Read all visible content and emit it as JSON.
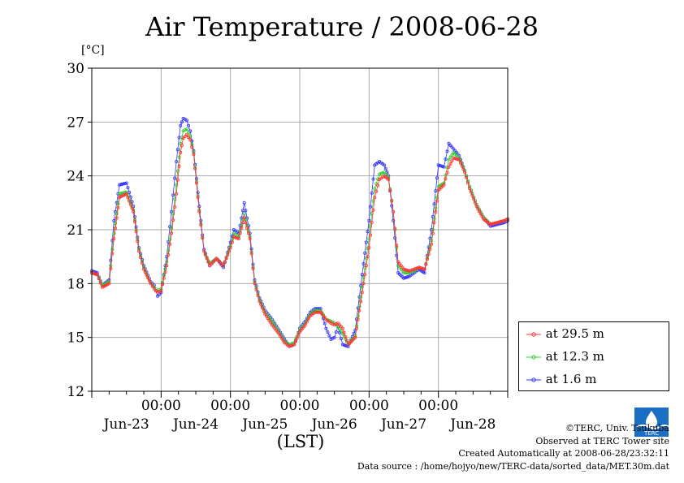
{
  "header": {
    "title": "Air Temperature / 2008-06-28",
    "unit": "[°C]"
  },
  "legend": [
    {
      "label": "at 29.5 m",
      "color": "#ff3333"
    },
    {
      "label": "at 12.3 m",
      "color": "#33cc33"
    },
    {
      "label": "at 1.6 m",
      "color": "#3333ff"
    }
  ],
  "credits": {
    "copyright": "©TERC, Univ. Tsukuba",
    "observed": "Observed at TERC Tower site",
    "created": "Created Automatically at 2008-06-28/23:32:11",
    "source": "Data source : /home/hojyo/new/TERC-data/sorted_data/MET.30m.dat"
  },
  "logo": {
    "icon": "terc-logo-icon",
    "text": "TERC"
  },
  "chart_data": {
    "type": "line",
    "title": "Air Temperature / 2008-06-28",
    "ylabel": "[°C]",
    "xlabel": "(LST)",
    "ylim": [
      12,
      30
    ],
    "yticks": [
      12,
      15,
      18,
      21,
      24,
      27,
      30
    ],
    "xlim": [
      0,
      6
    ],
    "midnight_ticks": [
      1,
      2,
      3,
      4,
      5
    ],
    "midnight_label": "00:00",
    "day_labels": [
      "Jun-23",
      "Jun-24",
      "Jun-25",
      "Jun-26",
      "Jun-27",
      "Jun-28"
    ],
    "grid": true,
    "legend_position": "right-bottom",
    "series": [
      {
        "name": "at 29.5 m",
        "color": "#ff3333",
        "x": [
          0,
          0.08,
          0.15,
          0.25,
          0.32,
          0.4,
          0.5,
          0.6,
          0.68,
          0.75,
          0.85,
          0.9,
          0.95,
          1.0,
          1.08,
          1.15,
          1.22,
          1.28,
          1.32,
          1.37,
          1.42,
          1.47,
          1.55,
          1.62,
          1.7,
          1.8,
          1.9,
          2.0,
          2.05,
          2.12,
          2.2,
          2.28,
          2.35,
          2.42,
          2.5,
          2.6,
          2.7,
          2.78,
          2.85,
          2.92,
          3.0,
          3.08,
          3.15,
          3.22,
          3.3,
          3.38,
          3.45,
          3.5,
          3.55,
          3.62,
          3.7,
          3.8,
          3.9,
          4.0,
          4.08,
          4.15,
          4.22,
          4.28,
          4.35,
          4.42,
          4.5,
          4.58,
          4.65,
          4.72,
          4.8,
          4.9,
          5.0,
          5.08,
          5.15,
          5.22,
          5.3,
          5.38,
          5.45,
          5.55,
          5.65,
          5.75,
          5.85,
          5.95,
          6.0
        ],
        "y": [
          18.6,
          18.5,
          17.8,
          18.0,
          20.5,
          22.8,
          23.0,
          22.0,
          19.8,
          18.8,
          18.0,
          17.7,
          17.5,
          17.6,
          19.0,
          20.8,
          23.0,
          25.3,
          26.1,
          26.3,
          26.0,
          25.2,
          22.0,
          19.8,
          19.0,
          19.4,
          19.0,
          20.0,
          20.6,
          20.5,
          21.7,
          20.5,
          18.0,
          17.0,
          16.3,
          15.7,
          15.2,
          14.7,
          14.5,
          14.6,
          15.3,
          15.7,
          16.2,
          16.4,
          16.4,
          16.0,
          15.8,
          15.7,
          15.8,
          15.5,
          14.6,
          15.0,
          17.5,
          20.0,
          22.8,
          23.8,
          24.0,
          23.8,
          22.0,
          19.2,
          18.8,
          18.7,
          18.8,
          18.9,
          18.8,
          20.2,
          23.2,
          23.5,
          24.5,
          25.0,
          24.9,
          24.2,
          23.3,
          22.3,
          21.6,
          21.3,
          21.4,
          21.5,
          21.6
        ]
      },
      {
        "name": "at 12.3 m",
        "color": "#33cc33",
        "x": [
          0,
          0.08,
          0.15,
          0.25,
          0.32,
          0.4,
          0.5,
          0.6,
          0.68,
          0.75,
          0.85,
          0.9,
          0.95,
          1.0,
          1.08,
          1.15,
          1.22,
          1.28,
          1.32,
          1.37,
          1.42,
          1.47,
          1.55,
          1.62,
          1.7,
          1.8,
          1.9,
          2.0,
          2.05,
          2.12,
          2.2,
          2.28,
          2.35,
          2.42,
          2.5,
          2.6,
          2.7,
          2.78,
          2.85,
          2.92,
          3.0,
          3.08,
          3.15,
          3.22,
          3.3,
          3.38,
          3.45,
          3.5,
          3.55,
          3.62,
          3.7,
          3.8,
          3.9,
          4.0,
          4.08,
          4.15,
          4.22,
          4.28,
          4.35,
          4.42,
          4.5,
          4.58,
          4.65,
          4.72,
          4.8,
          4.9,
          5.0,
          5.08,
          5.15,
          5.22,
          5.3,
          5.38,
          5.45,
          5.55,
          5.65,
          5.75,
          5.85,
          5.95,
          6.0
        ],
        "y": [
          18.6,
          18.5,
          17.9,
          18.1,
          20.8,
          23.0,
          23.1,
          22.1,
          19.9,
          18.9,
          18.0,
          17.8,
          17.6,
          17.7,
          19.2,
          21.1,
          23.5,
          25.8,
          26.5,
          26.6,
          26.2,
          25.3,
          22.1,
          19.8,
          19.1,
          19.4,
          19.0,
          20.1,
          20.8,
          20.6,
          21.9,
          20.6,
          18.1,
          17.1,
          16.4,
          15.9,
          15.3,
          14.8,
          14.6,
          14.7,
          15.4,
          15.8,
          16.3,
          16.5,
          16.5,
          16.0,
          15.9,
          15.8,
          15.6,
          15.2,
          14.6,
          15.1,
          17.8,
          20.5,
          23.3,
          24.1,
          24.2,
          23.9,
          22.0,
          19.0,
          18.6,
          18.6,
          18.7,
          18.9,
          18.8,
          20.4,
          23.4,
          23.6,
          24.9,
          25.3,
          25.0,
          24.3,
          23.4,
          22.4,
          21.7,
          21.3,
          21.4,
          21.5,
          21.6
        ]
      },
      {
        "name": "at 1.6 m",
        "color": "#3333ff",
        "x": [
          0,
          0.08,
          0.15,
          0.25,
          0.32,
          0.4,
          0.5,
          0.6,
          0.68,
          0.75,
          0.85,
          0.9,
          0.95,
          1.0,
          1.08,
          1.15,
          1.22,
          1.28,
          1.32,
          1.37,
          1.42,
          1.47,
          1.55,
          1.62,
          1.7,
          1.8,
          1.9,
          2.0,
          2.05,
          2.12,
          2.2,
          2.28,
          2.35,
          2.42,
          2.5,
          2.6,
          2.7,
          2.78,
          2.85,
          2.92,
          3.0,
          3.08,
          3.15,
          3.22,
          3.3,
          3.38,
          3.45,
          3.5,
          3.55,
          3.62,
          3.7,
          3.8,
          3.9,
          4.0,
          4.08,
          4.15,
          4.22,
          4.28,
          4.35,
          4.42,
          4.5,
          4.58,
          4.65,
          4.72,
          4.8,
          4.9,
          5.0,
          5.08,
          5.15,
          5.22,
          5.3,
          5.38,
          5.45,
          5.55,
          5.65,
          5.75,
          5.85,
          5.95,
          6.0
        ],
        "y": [
          18.7,
          18.6,
          17.9,
          18.2,
          21.5,
          23.5,
          23.6,
          22.3,
          20.0,
          19.0,
          18.1,
          17.9,
          17.3,
          17.5,
          19.5,
          22.0,
          24.8,
          26.8,
          27.2,
          27.1,
          26.5,
          25.4,
          22.3,
          19.9,
          19.0,
          19.4,
          18.9,
          20.3,
          21.0,
          20.8,
          22.5,
          20.8,
          18.2,
          17.2,
          16.5,
          16.0,
          15.4,
          14.9,
          14.5,
          14.6,
          15.5,
          15.9,
          16.4,
          16.6,
          16.6,
          15.5,
          14.9,
          15.0,
          15.6,
          14.6,
          14.5,
          15.4,
          18.5,
          21.5,
          24.6,
          24.8,
          24.6,
          24.0,
          21.5,
          18.6,
          18.3,
          18.4,
          18.6,
          18.8,
          18.6,
          21.0,
          24.6,
          24.5,
          25.8,
          25.5,
          25.1,
          24.3,
          23.4,
          22.4,
          21.7,
          21.2,
          21.3,
          21.4,
          21.5
        ]
      }
    ]
  }
}
